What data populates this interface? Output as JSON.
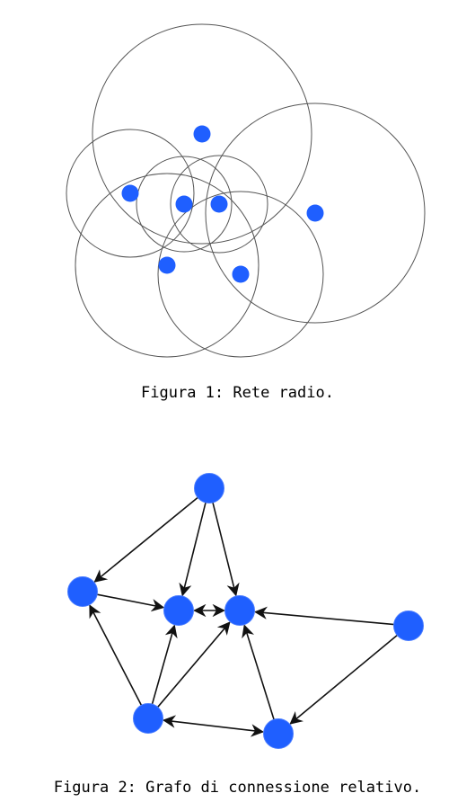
{
  "colors": {
    "node": "#1f5fff",
    "range": "#555555",
    "edge": "#111111"
  },
  "figure1": {
    "caption": "Figura 1: Rete radio.",
    "nodes": [
      {
        "id": "n1",
        "label": "node-top-1"
      },
      {
        "id": "n2",
        "label": "node-left-2"
      },
      {
        "id": "n3",
        "label": "node-center-left-3"
      },
      {
        "id": "n4",
        "label": "node-center-right-4"
      },
      {
        "id": "n5",
        "label": "node-right-5"
      },
      {
        "id": "n6",
        "label": "node-bottom-left-6"
      },
      {
        "id": "n7",
        "label": "node-bottom-right-7"
      }
    ]
  },
  "figure2": {
    "caption": "Figura 2: Grafo di connessione relativo.",
    "nodes": [
      {
        "id": "a"
      },
      {
        "id": "b"
      },
      {
        "id": "c"
      },
      {
        "id": "d"
      },
      {
        "id": "e"
      },
      {
        "id": "f"
      },
      {
        "id": "g"
      }
    ],
    "edges": [
      {
        "from": "a",
        "to": "b"
      },
      {
        "from": "a",
        "to": "c"
      },
      {
        "from": "a",
        "to": "d"
      },
      {
        "from": "b",
        "to": "c"
      },
      {
        "from": "c",
        "to": "d",
        "bidirectional": true
      },
      {
        "from": "e",
        "to": "d"
      },
      {
        "from": "e",
        "to": "g"
      },
      {
        "from": "f",
        "to": "b"
      },
      {
        "from": "f",
        "to": "c"
      },
      {
        "from": "f",
        "to": "d"
      },
      {
        "from": "f",
        "to": "g",
        "bidirectional": true
      },
      {
        "from": "g",
        "to": "d"
      }
    ]
  }
}
